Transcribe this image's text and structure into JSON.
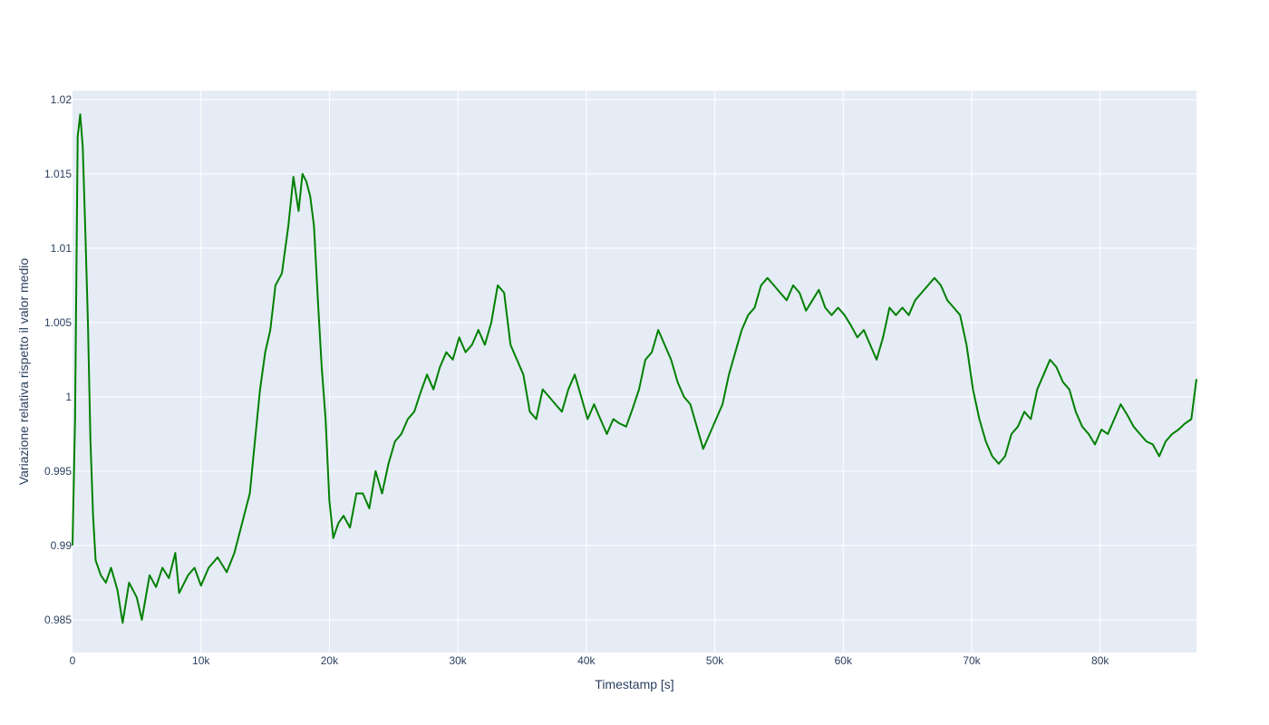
{
  "chart_data": {
    "type": "line",
    "title": "",
    "xlabel": "Timestamp [s]",
    "ylabel": "Variazione relativa rispetto il valor medio",
    "xlim": [
      0,
      87500
    ],
    "ylim": [
      0.9828,
      1.0206
    ],
    "grid": true,
    "legend": "none",
    "x_ticks": [
      0,
      10000,
      20000,
      30000,
      40000,
      50000,
      60000,
      70000,
      80000
    ],
    "x_tick_labels": [
      "0",
      "10k",
      "20k",
      "30k",
      "40k",
      "50k",
      "60k",
      "70k",
      "80k"
    ],
    "y_ticks": [
      0.985,
      0.99,
      0.995,
      1,
      1.005,
      1.01,
      1.015,
      1.02
    ],
    "y_tick_labels": [
      "0.985",
      "0.99",
      "0.995",
      "1",
      "1.005",
      "1.01",
      "1.015",
      "1.02"
    ],
    "colors": {
      "line": "#008000",
      "plot_bg": "#e5ecf6",
      "grid": "#ffffff",
      "text": "#2a3f5f"
    },
    "series": [
      {
        "values": [
          [
            0,
            0.99
          ],
          [
            200,
            0.9985
          ],
          [
            400,
            1.0175
          ],
          [
            600,
            1.019
          ],
          [
            800,
            1.0168
          ],
          [
            1000,
            1.011
          ],
          [
            1200,
            1.005
          ],
          [
            1400,
            0.997
          ],
          [
            1600,
            0.992
          ],
          [
            1800,
            0.989
          ],
          [
            2200,
            0.988
          ],
          [
            2600,
            0.9875
          ],
          [
            3000,
            0.9885
          ],
          [
            3500,
            0.987
          ],
          [
            3900,
            0.9848
          ],
          [
            4400,
            0.9875
          ],
          [
            5000,
            0.9865
          ],
          [
            5400,
            0.985
          ],
          [
            6000,
            0.988
          ],
          [
            6500,
            0.9872
          ],
          [
            7000,
            0.9885
          ],
          [
            7500,
            0.9878
          ],
          [
            8000,
            0.9895
          ],
          [
            8300,
            0.9868
          ],
          [
            9000,
            0.988
          ],
          [
            9500,
            0.9885
          ],
          [
            10000,
            0.9873
          ],
          [
            10600,
            0.9885
          ],
          [
            11300,
            0.9892
          ],
          [
            12000,
            0.9882
          ],
          [
            12600,
            0.9895
          ],
          [
            13200,
            0.9915
          ],
          [
            13800,
            0.9935
          ],
          [
            14200,
            0.997
          ],
          [
            14600,
            1.0005
          ],
          [
            15000,
            1.003
          ],
          [
            15400,
            1.0045
          ],
          [
            15800,
            1.0075
          ],
          [
            16300,
            1.0083
          ],
          [
            16800,
            1.0115
          ],
          [
            17200,
            1.0148
          ],
          [
            17600,
            1.0125
          ],
          [
            17900,
            1.015
          ],
          [
            18200,
            1.0145
          ],
          [
            18500,
            1.0135
          ],
          [
            18800,
            1.0115
          ],
          [
            19100,
            1.0065
          ],
          [
            19400,
            1.002
          ],
          [
            19700,
            0.9985
          ],
          [
            20000,
            0.993
          ],
          [
            20300,
            0.9905
          ],
          [
            20700,
            0.9915
          ],
          [
            21100,
            0.992
          ],
          [
            21600,
            0.9912
          ],
          [
            22100,
            0.9935
          ],
          [
            22600,
            0.9935
          ],
          [
            23100,
            0.9925
          ],
          [
            23600,
            0.995
          ],
          [
            24100,
            0.9935
          ],
          [
            24600,
            0.9955
          ],
          [
            25100,
            0.997
          ],
          [
            25600,
            0.9975
          ],
          [
            26100,
            0.9985
          ],
          [
            26600,
            0.999
          ],
          [
            27100,
            1.0003
          ],
          [
            27600,
            1.0015
          ],
          [
            28100,
            1.0005
          ],
          [
            28600,
            1.002
          ],
          [
            29100,
            1.003
          ],
          [
            29600,
            1.0025
          ],
          [
            30100,
            1.004
          ],
          [
            30600,
            1.003
          ],
          [
            31100,
            1.0035
          ],
          [
            31600,
            1.0045
          ],
          [
            32100,
            1.0035
          ],
          [
            32600,
            1.005
          ],
          [
            33100,
            1.0075
          ],
          [
            33600,
            1.007
          ],
          [
            34100,
            1.0035
          ],
          [
            34600,
            1.0025
          ],
          [
            35100,
            1.0015
          ],
          [
            35600,
            0.999
          ],
          [
            36100,
            0.9985
          ],
          [
            36600,
            1.0005
          ],
          [
            37100,
            1.0
          ],
          [
            37600,
            0.9995
          ],
          [
            38100,
            0.999
          ],
          [
            38600,
            1.0005
          ],
          [
            39100,
            1.0015
          ],
          [
            39600,
            1.0
          ],
          [
            40100,
            0.9985
          ],
          [
            40600,
            0.9995
          ],
          [
            41100,
            0.9985
          ],
          [
            41600,
            0.9975
          ],
          [
            42100,
            0.9985
          ],
          [
            42600,
            0.9982
          ],
          [
            43100,
            0.998
          ],
          [
            43600,
            0.9992
          ],
          [
            44100,
            1.0005
          ],
          [
            44600,
            1.0025
          ],
          [
            45100,
            1.003
          ],
          [
            45600,
            1.0045
          ],
          [
            46100,
            1.0035
          ],
          [
            46600,
            1.0025
          ],
          [
            47100,
            1.001
          ],
          [
            47600,
            1.0
          ],
          [
            48100,
            0.9995
          ],
          [
            48600,
            0.998
          ],
          [
            49100,
            0.9965
          ],
          [
            49600,
            0.9975
          ],
          [
            50100,
            0.9985
          ],
          [
            50600,
            0.9995
          ],
          [
            51100,
            1.0015
          ],
          [
            51600,
            1.003
          ],
          [
            52100,
            1.0045
          ],
          [
            52600,
            1.0055
          ],
          [
            53100,
            1.006
          ],
          [
            53600,
            1.0075
          ],
          [
            54100,
            1.008
          ],
          [
            54600,
            1.0075
          ],
          [
            55100,
            1.007
          ],
          [
            55600,
            1.0065
          ],
          [
            56100,
            1.0075
          ],
          [
            56600,
            1.007
          ],
          [
            57100,
            1.0058
          ],
          [
            57600,
            1.0065
          ],
          [
            58100,
            1.0072
          ],
          [
            58600,
            1.006
          ],
          [
            59100,
            1.0055
          ],
          [
            59600,
            1.006
          ],
          [
            60100,
            1.0055
          ],
          [
            60600,
            1.0048
          ],
          [
            61100,
            1.004
          ],
          [
            61600,
            1.0045
          ],
          [
            62100,
            1.0035
          ],
          [
            62600,
            1.0025
          ],
          [
            63100,
            1.004
          ],
          [
            63600,
            1.006
          ],
          [
            64100,
            1.0055
          ],
          [
            64600,
            1.006
          ],
          [
            65100,
            1.0055
          ],
          [
            65600,
            1.0065
          ],
          [
            66100,
            1.007
          ],
          [
            66600,
            1.0075
          ],
          [
            67100,
            1.008
          ],
          [
            67600,
            1.0075
          ],
          [
            68100,
            1.0065
          ],
          [
            68600,
            1.006
          ],
          [
            69100,
            1.0055
          ],
          [
            69600,
            1.0035
          ],
          [
            70100,
            1.0005
          ],
          [
            70600,
            0.9985
          ],
          [
            71100,
            0.997
          ],
          [
            71600,
            0.996
          ],
          [
            72100,
            0.9955
          ],
          [
            72600,
            0.996
          ],
          [
            73100,
            0.9975
          ],
          [
            73600,
            0.998
          ],
          [
            74100,
            0.999
          ],
          [
            74600,
            0.9985
          ],
          [
            75100,
            1.0005
          ],
          [
            75600,
            1.0015
          ],
          [
            76100,
            1.0025
          ],
          [
            76600,
            1.002
          ],
          [
            77100,
            1.001
          ],
          [
            77600,
            1.0005
          ],
          [
            78100,
            0.999
          ],
          [
            78600,
            0.998
          ],
          [
            79100,
            0.9975
          ],
          [
            79600,
            0.9968
          ],
          [
            80100,
            0.9978
          ],
          [
            80600,
            0.9975
          ],
          [
            81100,
            0.9985
          ],
          [
            81600,
            0.9995
          ],
          [
            82100,
            0.9988
          ],
          [
            82600,
            0.998
          ],
          [
            83100,
            0.9975
          ],
          [
            83600,
            0.997
          ],
          [
            84100,
            0.9968
          ],
          [
            84600,
            0.996
          ],
          [
            85100,
            0.997
          ],
          [
            85600,
            0.9975
          ],
          [
            86100,
            0.9978
          ],
          [
            86600,
            0.9982
          ],
          [
            87100,
            0.9985
          ],
          [
            87500,
            1.0012
          ]
        ]
      }
    ]
  }
}
